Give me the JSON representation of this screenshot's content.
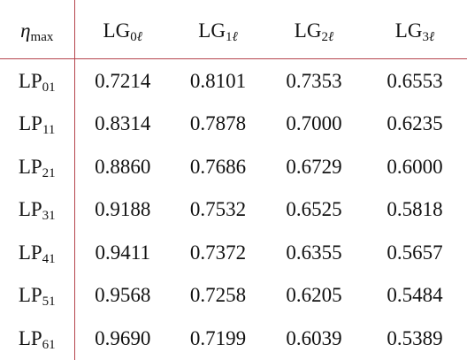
{
  "table": {
    "corner": {
      "symbol": "η",
      "subscript": "max"
    },
    "columns": [
      {
        "base": "LG",
        "sub_num": "0",
        "sub_var": "ℓ"
      },
      {
        "base": "LG",
        "sub_num": "1",
        "sub_var": "ℓ"
      },
      {
        "base": "LG",
        "sub_num": "2",
        "sub_var": "ℓ"
      },
      {
        "base": "LG",
        "sub_num": "3",
        "sub_var": "ℓ"
      }
    ],
    "rows": [
      {
        "base": "LP",
        "sub": "01",
        "values": [
          "0.7214",
          "0.8101",
          "0.7353",
          "0.6553"
        ]
      },
      {
        "base": "LP",
        "sub": "11",
        "values": [
          "0.8314",
          "0.7878",
          "0.7000",
          "0.6235"
        ]
      },
      {
        "base": "LP",
        "sub": "21",
        "values": [
          "0.8860",
          "0.7686",
          "0.6729",
          "0.6000"
        ]
      },
      {
        "base": "LP",
        "sub": "31",
        "values": [
          "0.9188",
          "0.7532",
          "0.6525",
          "0.5818"
        ]
      },
      {
        "base": "LP",
        "sub": "41",
        "values": [
          "0.9411",
          "0.7372",
          "0.6355",
          "0.5657"
        ]
      },
      {
        "base": "LP",
        "sub": "51",
        "values": [
          "0.9568",
          "0.7258",
          "0.6205",
          "0.5484"
        ]
      },
      {
        "base": "LP",
        "sub": "61",
        "values": [
          "0.9690",
          "0.7199",
          "0.6039",
          "0.5389"
        ]
      }
    ]
  },
  "colors": {
    "rule": "#b5454d",
    "text": "#111111",
    "background": "#ffffff"
  }
}
